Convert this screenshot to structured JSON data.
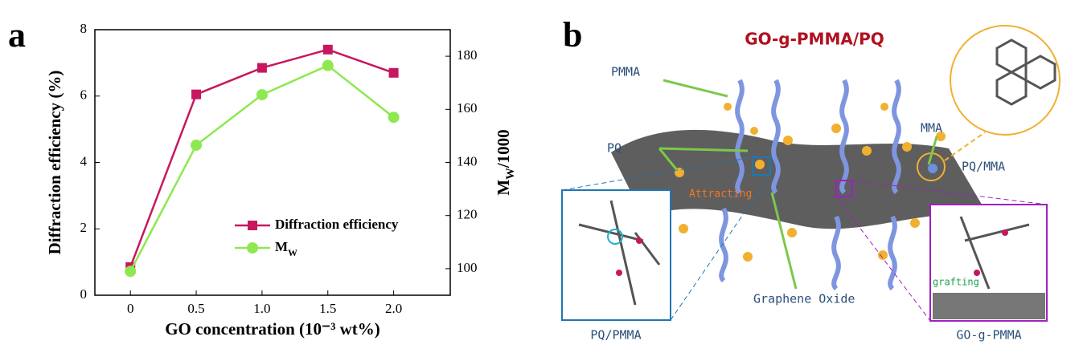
{
  "chart_data": {
    "type": "line",
    "panel_label": "a",
    "x_label": "GO  concentration (10⁻³ wt%)",
    "y_label": "Diffraction efficiency (%)",
    "y2_label": "MW/1000",
    "x": [
      0,
      0.5,
      1,
      1.5,
      2
    ],
    "xlim": [
      -0.27,
      2.43
    ],
    "xticks": [
      0,
      0.5,
      {
        "value": 1,
        "label": "1.0"
      },
      1.5,
      {
        "value": 2,
        "label": "2.0"
      }
    ],
    "ylim": [
      0,
      8
    ],
    "yticks": [
      0,
      2,
      4,
      6,
      8
    ],
    "y2lim": [
      90,
      190
    ],
    "y2ticks": [
      100,
      120,
      140,
      160,
      180
    ],
    "legend": "lower right",
    "series": [
      {
        "name": "Diffraction efficiency",
        "color": "#c8175e",
        "marker": "square",
        "values": [
          0.85,
          6.05,
          6.85,
          7.4,
          6.7
        ]
      },
      {
        "name": "MW",
        "color": "#8ee84f",
        "marker": "circle",
        "axis": "y2",
        "values": [
          99,
          146.5,
          165.5,
          176.5,
          157
        ]
      }
    ]
  },
  "diagram": {
    "panel_label": "b",
    "title": "GO-g-PMMA/PQ",
    "labels": {
      "pmma": "PMMA",
      "pq": "PQ",
      "mma": "MMA",
      "pq_mma": "PQ/MMA",
      "attracting": "Attracting",
      "graphene_oxide": "Graphene Oxide",
      "pq_pmma": "PQ/PMMA",
      "go_g_pmma": "GO-g-PMMA",
      "grafting": "grafting"
    }
  }
}
